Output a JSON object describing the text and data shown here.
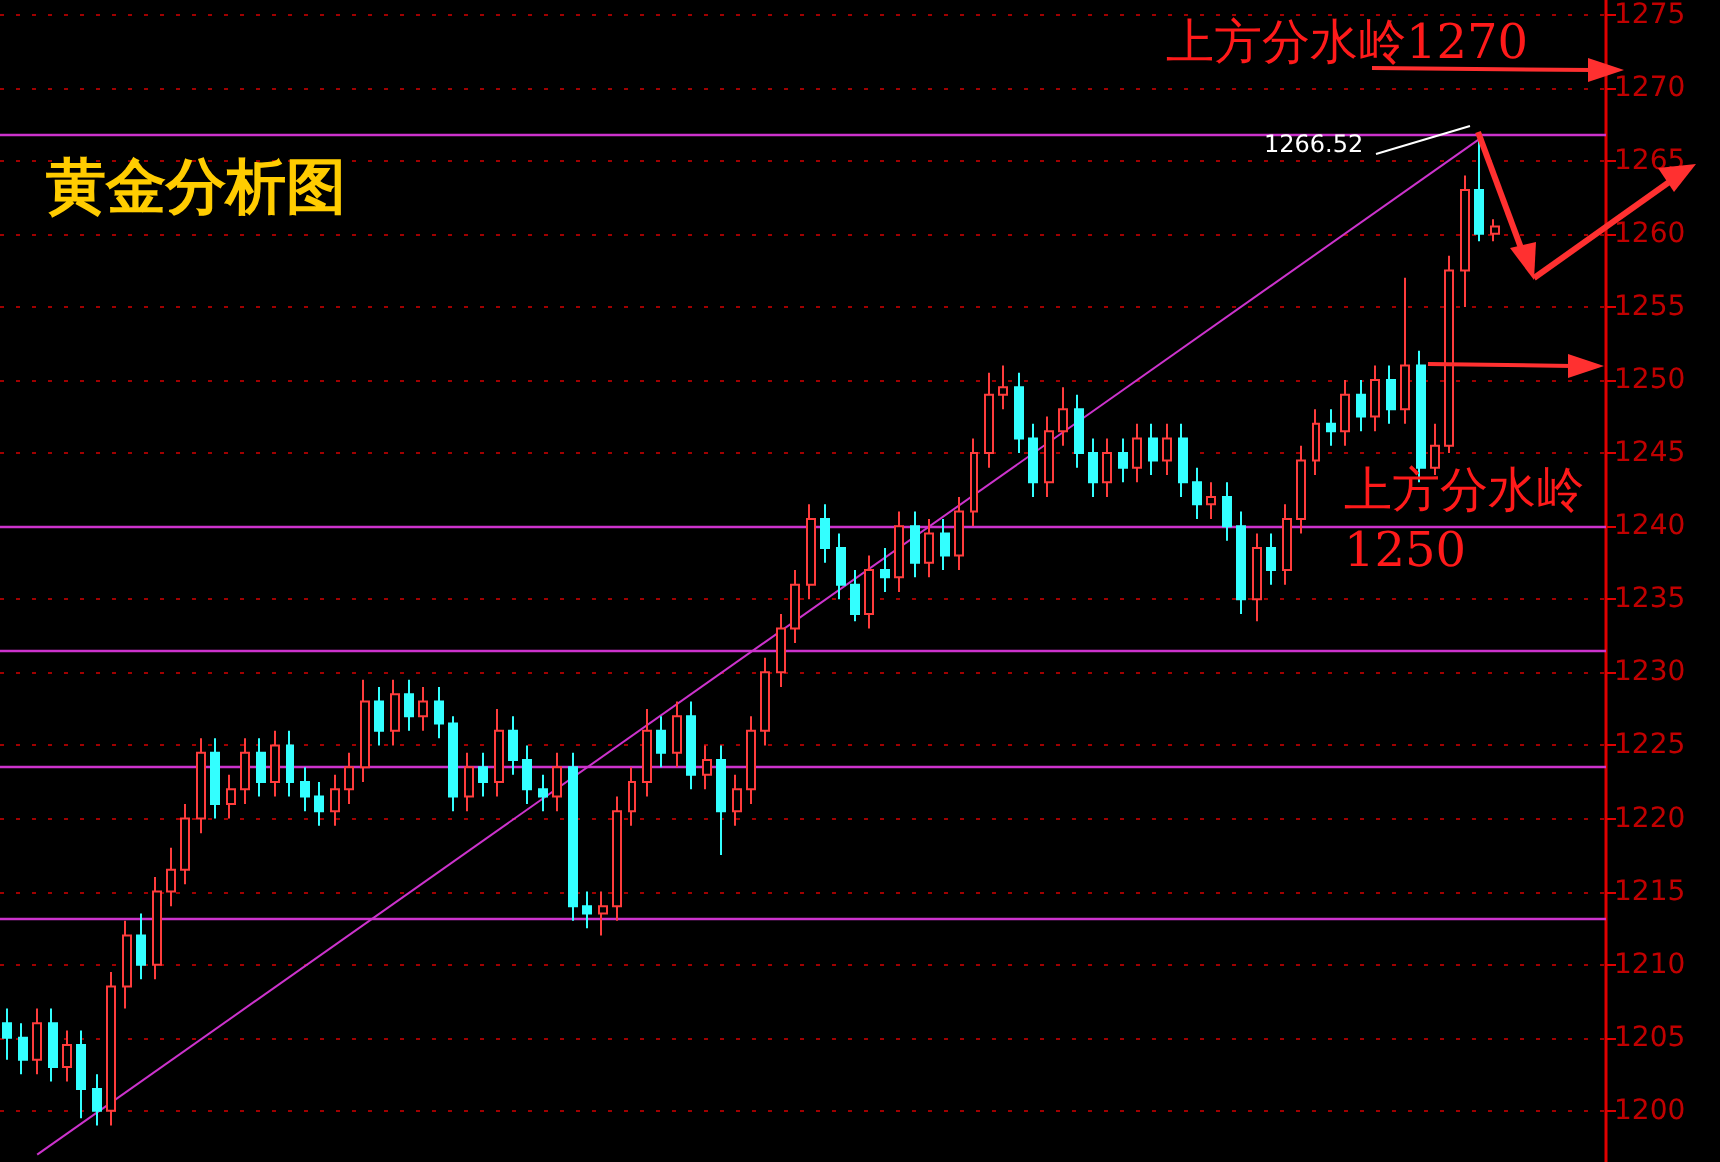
{
  "chart_data": {
    "type": "candlestick",
    "title": "黄金分析图",
    "categories": [
      null,
      null,
      null,
      null,
      null,
      null,
      null,
      null,
      null,
      null,
      null,
      null,
      null,
      null,
      null,
      null,
      null,
      null,
      null,
      null,
      null,
      null,
      null,
      null,
      null,
      null,
      null,
      null,
      null,
      null,
      null,
      null,
      null,
      null,
      null,
      null,
      null,
      null,
      null,
      null,
      null,
      null,
      null,
      null,
      null,
      null,
      null,
      null,
      null,
      null,
      null,
      null,
      null,
      null,
      null,
      null,
      null,
      null,
      null,
      null,
      null,
      null,
      null,
      null,
      null,
      null,
      null,
      null,
      null,
      null,
      null,
      null,
      null,
      null,
      null,
      null,
      null,
      null,
      null,
      null,
      null,
      null,
      null,
      null,
      null,
      null,
      null,
      null,
      null,
      null,
      null,
      null,
      null,
      null,
      null,
      null,
      null,
      null,
      null,
      null,
      null,
      null,
      null,
      null,
      null,
      null,
      null,
      null
    ],
    "ohlc": [
      [
        1206,
        1207,
        1203.5,
        1205
      ],
      [
        1205,
        1206,
        1202.5,
        1203.5
      ],
      [
        1203.5,
        1207,
        1202.5,
        1206
      ],
      [
        1206,
        1207,
        1202,
        1203
      ],
      [
        1203,
        1205.5,
        1202,
        1204.5
      ],
      [
        1204.5,
        1205.5,
        1199.5,
        1201.5
      ],
      [
        1201.5,
        1202.5,
        1199,
        1200
      ],
      [
        1200,
        1209.5,
        1199,
        1208.5
      ],
      [
        1208.5,
        1213,
        1207,
        1212
      ],
      [
        1212,
        1213.5,
        1209,
        1210
      ],
      [
        1210,
        1216,
        1209,
        1215
      ],
      [
        1215,
        1218,
        1214,
        1216.5
      ],
      [
        1216.5,
        1221,
        1215.5,
        1220
      ],
      [
        1220,
        1225.5,
        1219,
        1224.5
      ],
      [
        1224.5,
        1225.5,
        1220,
        1221
      ],
      [
        1221,
        1223,
        1220,
        1222
      ],
      [
        1222,
        1225.5,
        1221,
        1224.5
      ],
      [
        1224.5,
        1225.5,
        1221.5,
        1222.5
      ],
      [
        1222.5,
        1226,
        1221.5,
        1225
      ],
      [
        1225,
        1226,
        1221.5,
        1222.5
      ],
      [
        1222.5,
        1223.5,
        1220.5,
        1221.5
      ],
      [
        1221.5,
        1222.5,
        1219.5,
        1220.5
      ],
      [
        1220.5,
        1223,
        1219.5,
        1222
      ],
      [
        1222,
        1224.5,
        1221,
        1223.5
      ],
      [
        1223.5,
        1229.5,
        1222.5,
        1228
      ],
      [
        1228,
        1229,
        1225,
        1226
      ],
      [
        1226,
        1229.5,
        1225,
        1228.5
      ],
      [
        1228.5,
        1229.5,
        1226,
        1227
      ],
      [
        1227,
        1229,
        1226,
        1228
      ],
      [
        1228,
        1229,
        1225.5,
        1226.5
      ],
      [
        1226.5,
        1227,
        1220.5,
        1221.5
      ],
      [
        1221.5,
        1224.5,
        1220.5,
        1223.5
      ],
      [
        1223.5,
        1224.5,
        1221.5,
        1222.5
      ],
      [
        1222.5,
        1227.5,
        1221.5,
        1226
      ],
      [
        1226,
        1227,
        1223,
        1224
      ],
      [
        1224,
        1225,
        1221,
        1222
      ],
      [
        1222,
        1223,
        1220.5,
        1221.5
      ],
      [
        1221.5,
        1224.5,
        1220.5,
        1223.5
      ],
      [
        1223.5,
        1224.5,
        1213,
        1214
      ],
      [
        1214,
        1215,
        1212.5,
        1213.5
      ],
      [
        1213.5,
        1215,
        1212,
        1214
      ],
      [
        1214,
        1221.5,
        1213,
        1220.5
      ],
      [
        1220.5,
        1223.5,
        1219.5,
        1222.5
      ],
      [
        1222.5,
        1227.5,
        1221.5,
        1226
      ],
      [
        1226,
        1227,
        1223.5,
        1224.5
      ],
      [
        1224.5,
        1228,
        1223.5,
        1227
      ],
      [
        1227,
        1228,
        1222,
        1223
      ],
      [
        1223,
        1225,
        1222,
        1224
      ],
      [
        1224,
        1225,
        1217.5,
        1220.5
      ],
      [
        1220.5,
        1223,
        1219.5,
        1222
      ],
      [
        1222,
        1227,
        1221,
        1226
      ],
      [
        1226,
        1231,
        1225,
        1230
      ],
      [
        1230,
        1234,
        1229,
        1233
      ],
      [
        1233,
        1237,
        1232,
        1236
      ],
      [
        1236,
        1241.5,
        1235,
        1240.5
      ],
      [
        1240.5,
        1241.5,
        1237.5,
        1238.5
      ],
      [
        1238.5,
        1239.5,
        1235,
        1236
      ],
      [
        1236,
        1237,
        1233.5,
        1234
      ],
      [
        1234,
        1238,
        1233,
        1237
      ],
      [
        1237,
        1238.5,
        1235.5,
        1236.5
      ],
      [
        1236.5,
        1241,
        1235.5,
        1240
      ],
      [
        1240,
        1241,
        1236.5,
        1237.5
      ],
      [
        1237.5,
        1240.5,
        1236.5,
        1239.5
      ],
      [
        1239.5,
        1240.5,
        1237,
        1238
      ],
      [
        1238,
        1242,
        1237,
        1241
      ],
      [
        1241,
        1246,
        1240,
        1245
      ],
      [
        1245,
        1250.5,
        1244,
        1249
      ],
      [
        1249,
        1251,
        1248,
        1249.5
      ],
      [
        1249.5,
        1250.5,
        1245,
        1246
      ],
      [
        1246,
        1247,
        1242,
        1243
      ],
      [
        1243,
        1247.5,
        1242,
        1246.5
      ],
      [
        1246.5,
        1249.5,
        1245.5,
        1248
      ],
      [
        1248,
        1249,
        1244,
        1245
      ],
      [
        1245,
        1246,
        1242,
        1243
      ],
      [
        1243,
        1246,
        1242,
        1245
      ],
      [
        1245,
        1246,
        1243,
        1244
      ],
      [
        1244,
        1247,
        1243,
        1246
      ],
      [
        1246,
        1247,
        1243.5,
        1244.5
      ],
      [
        1244.5,
        1247,
        1243.5,
        1246
      ],
      [
        1246,
        1247,
        1242,
        1243
      ],
      [
        1243,
        1244,
        1240.5,
        1241.5
      ],
      [
        1241.5,
        1243,
        1240.5,
        1242
      ],
      [
        1242,
        1243,
        1239,
        1240
      ],
      [
        1240,
        1241,
        1234,
        1235
      ],
      [
        1235,
        1239.5,
        1233.5,
        1238.5
      ],
      [
        1238.5,
        1239.5,
        1236,
        1237
      ],
      [
        1237,
        1241.5,
        1236,
        1240.5
      ],
      [
        1240.5,
        1245.5,
        1239.5,
        1244.5
      ],
      [
        1244.5,
        1248,
        1243.5,
        1247
      ],
      [
        1247,
        1248,
        1245.5,
        1246.5
      ],
      [
        1246.5,
        1250,
        1245.5,
        1249
      ],
      [
        1249,
        1250,
        1246.5,
        1247.5
      ],
      [
        1247.5,
        1251,
        1246.5,
        1250
      ],
      [
        1250,
        1251,
        1247,
        1248
      ],
      [
        1248,
        1257,
        1247,
        1251
      ],
      [
        1251,
        1252,
        1243,
        1244
      ],
      [
        1244,
        1247,
        1243.5,
        1245.5
      ],
      [
        1245.5,
        1258.5,
        1245,
        1257.5
      ],
      [
        1257.5,
        1264,
        1255,
        1263
      ],
      [
        1263,
        1266.52,
        1259.5,
        1260
      ],
      [
        1260,
        1261,
        1259.5,
        1260.5
      ],
      null,
      null,
      null,
      null,
      null,
      null,
      null
    ],
    "colors": [
      "#33ffff",
      "#33ffff",
      "#ff3c3c",
      "#33ffff",
      "#ff3c3c",
      "#33ffff",
      "#33ffff",
      "#ff3c3c",
      "#ff3c3c",
      "#33ffff",
      "#ff3c3c",
      "#ff3c3c",
      "#ff3c3c",
      "#ff3c3c",
      "#33ffff",
      "#ff3c3c",
      "#ff3c3c",
      "#33ffff",
      "#ff3c3c",
      "#33ffff",
      "#33ffff",
      "#33ffff",
      "#ff3c3c",
      "#ff3c3c",
      "#ff3c3c",
      "#33ffff",
      "#ff3c3c",
      "#33ffff",
      "#ff3c3c",
      "#33ffff",
      "#33ffff",
      "#ff3c3c",
      "#33ffff",
      "#ff3c3c",
      "#33ffff",
      "#33ffff",
      "#33ffff",
      "#ff3c3c",
      "#33ffff",
      "#33ffff",
      "#ff3c3c",
      "#ff3c3c",
      "#ff3c3c",
      "#ff3c3c",
      "#33ffff",
      "#ff3c3c",
      "#33ffff",
      "#ff3c3c",
      "#33ffff",
      "#ff3c3c",
      "#ff3c3c",
      "#ff3c3c",
      "#ff3c3c",
      "#ff3c3c",
      "#ff3c3c",
      "#33ffff",
      "#33ffff",
      "#33ffff",
      "#ff3c3c",
      "#33ffff",
      "#ff3c3c",
      "#33ffff",
      "#ff3c3c",
      "#33ffff",
      "#ff3c3c",
      "#ff3c3c",
      "#ff3c3c",
      "#ff3c3c",
      "#33ffff",
      "#33ffff",
      "#ff3c3c",
      "#ff3c3c",
      "#33ffff",
      "#33ffff",
      "#ff3c3c",
      "#33ffff",
      "#ff3c3c",
      "#33ffff",
      "#ff3c3c",
      "#33ffff",
      "#33ffff",
      "#ff3c3c",
      "#33ffff",
      "#33ffff",
      "#ff3c3c",
      "#33ffff",
      "#ff3c3c",
      "#ff3c3c",
      "#ff3c3c",
      "#33ffff",
      "#ff3c3c",
      "#33ffff",
      "#ff3c3c",
      "#33ffff",
      "#ff3c3c",
      "#33ffff",
      "#ff3c3c",
      "#ff3c3c",
      "#ff3c3c",
      "#33ffff",
      "#ff3c3c",
      null,
      null,
      null,
      null,
      null,
      null,
      null
    ],
    "series": [
      {
        "type": "line",
        "color": "#cc33cc",
        "values": [
          null,
          null,
          1197,
          null,
          null,
          null,
          null,
          null,
          null,
          null,
          null,
          null,
          null,
          null,
          null,
          null,
          null,
          null,
          null,
          null,
          null,
          null,
          null,
          null,
          null,
          null,
          null,
          null,
          null,
          null,
          null,
          null,
          null,
          null,
          null,
          null,
          null,
          null,
          null,
          null,
          null,
          null,
          null,
          null,
          null,
          null,
          null,
          null,
          null,
          null,
          null,
          null,
          null,
          null,
          null,
          null,
          null,
          null,
          null,
          null,
          null,
          null,
          null,
          null,
          null,
          null,
          null,
          null,
          null,
          null,
          null,
          null,
          null,
          null,
          null,
          null,
          null,
          null,
          null,
          null,
          null,
          null,
          null,
          null,
          null,
          null,
          null,
          null,
          null,
          null,
          null,
          null,
          null,
          null,
          null,
          null,
          null,
          null,
          null,
          1266.5,
          null,
          null,
          null,
          null,
          null,
          null,
          null,
          null
        ]
      }
    ],
    "ylim": [
      1196.5,
      1276
    ],
    "yticks": [
      1200,
      1205,
      1210,
      1215,
      1220,
      1225,
      1230,
      1235,
      1240,
      1245,
      1250,
      1255,
      1260,
      1265,
      1270,
      1275
    ],
    "grid": "y",
    "tick_labels": "y",
    "ref_lines": [
      {
        "axis": "y",
        "value": 1266.8,
        "color": "#cc33cc"
      },
      {
        "axis": "y",
        "value": 1240,
        "color": "#cc33cc"
      },
      {
        "axis": "y",
        "value": 1231.5,
        "color": "#cc33cc"
      },
      {
        "axis": "y",
        "value": 1223.5,
        "color": "#cc33cc"
      },
      {
        "axis": "y",
        "value": 1213.2,
        "color": "#cc33cc"
      }
    ],
    "annotations": [
      "上方分水岭1270",
      "上方分水岭",
      "1250",
      "1266.52"
    ]
  }
}
